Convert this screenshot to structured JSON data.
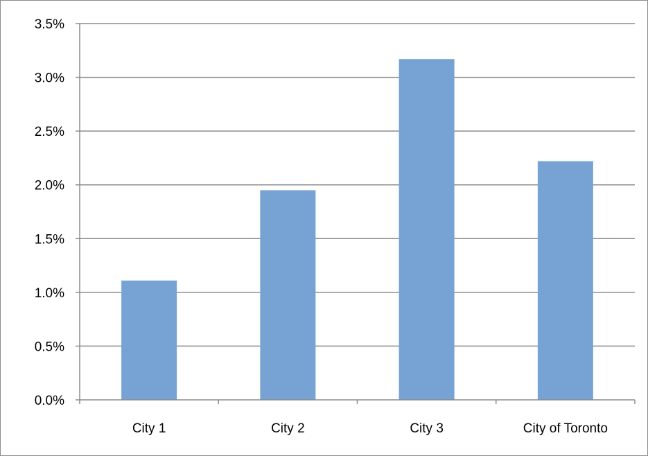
{
  "chart_data": {
    "type": "bar",
    "title": "",
    "xlabel": "",
    "ylabel": "",
    "categories": [
      "City 1",
      "City 2",
      "City 3",
      "City of Toronto"
    ],
    "values": [
      1.11,
      1.95,
      3.17,
      2.22
    ],
    "ylim": [
      0,
      3.5
    ],
    "y_ticks": [
      "0.0%",
      "0.5%",
      "1.0%",
      "1.5%",
      "2.0%",
      "2.5%",
      "3.0%",
      "3.5%"
    ],
    "y_tick_values": [
      0,
      0.5,
      1.0,
      1.5,
      2.0,
      2.5,
      3.0,
      3.5
    ],
    "grid": true,
    "legend": "none",
    "colors": {
      "bar": "#77a3d4",
      "grid": "#8c8c8c",
      "axis": "#8c8c8c"
    }
  }
}
